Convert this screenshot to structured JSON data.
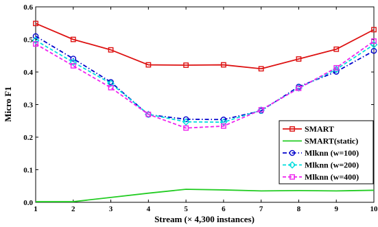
{
  "chart_data": {
    "type": "line",
    "xlabel": "Stream (× 4,300 instances)",
    "ylabel": "Micro F1",
    "xlim": [
      1,
      10
    ],
    "ylim": [
      0,
      0.6
    ],
    "xticks": [
      "1",
      "2",
      "3",
      "4",
      "5",
      "6",
      "7",
      "8",
      "9",
      "10"
    ],
    "yticks": [
      "0.0",
      "0.1",
      "0.2",
      "0.3",
      "0.4",
      "0.5",
      "0.6"
    ],
    "grid": false,
    "legend_position": "bottom-right",
    "x": [
      1,
      2,
      3,
      4,
      5,
      6,
      7,
      8,
      9,
      10
    ],
    "series": [
      {
        "name": "SMART",
        "color": "#dd1111",
        "marker": "square",
        "dash": "solid",
        "values": [
          0.549,
          0.5,
          0.468,
          0.422,
          0.421,
          0.422,
          0.41,
          0.44,
          0.47,
          0.53
        ]
      },
      {
        "name": "SMART(static)",
        "color": "#22cc22",
        "marker": "none",
        "dash": "solid",
        "values": [
          0.002,
          0.002,
          0.015,
          0.028,
          0.04,
          0.038,
          0.035,
          0.036,
          0.035,
          0.037
        ]
      },
      {
        "name": "Mlknn (w=100)",
        "color": "#0000cc",
        "marker": "circle",
        "dash": "dashdot",
        "values": [
          0.51,
          0.441,
          0.369,
          0.269,
          0.255,
          0.254,
          0.281,
          0.355,
          0.401,
          0.465
        ]
      },
      {
        "name": "Mlknn (w=200)",
        "color": "#00dddd",
        "marker": "diamond",
        "dash": "dash",
        "values": [
          0.497,
          0.43,
          0.365,
          0.27,
          0.247,
          0.246,
          0.283,
          0.351,
          0.408,
          0.484
        ]
      },
      {
        "name": "Mlknn (w=400)",
        "color": "#ee22ee",
        "marker": "square",
        "dash": "dash",
        "values": [
          0.486,
          0.419,
          0.352,
          0.27,
          0.228,
          0.234,
          0.284,
          0.35,
          0.413,
          0.495
        ]
      }
    ]
  }
}
